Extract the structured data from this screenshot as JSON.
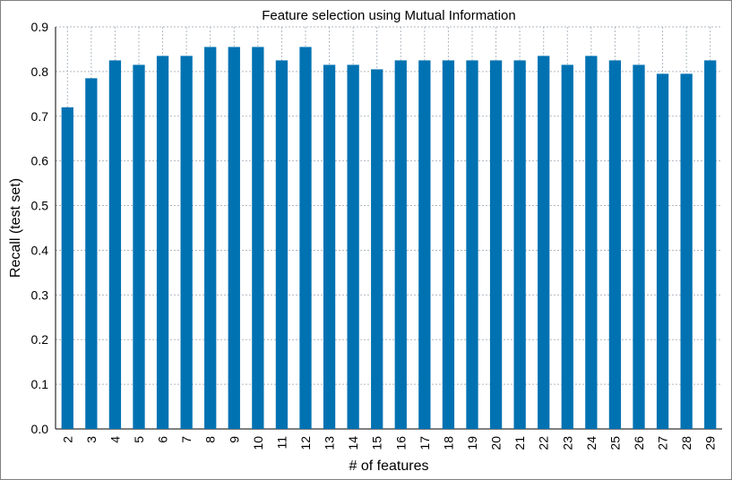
{
  "chart_data": {
    "type": "bar",
    "title": "Feature selection using Mutual Information",
    "xlabel": "# of features",
    "ylabel": "Recall (test set)",
    "categories": [
      "2",
      "3",
      "4",
      "5",
      "6",
      "7",
      "8",
      "9",
      "10",
      "11",
      "12",
      "13",
      "14",
      "15",
      "16",
      "17",
      "18",
      "19",
      "20",
      "21",
      "22",
      "23",
      "24",
      "25",
      "26",
      "27",
      "28",
      "29"
    ],
    "values": [
      0.72,
      0.785,
      0.825,
      0.815,
      0.835,
      0.835,
      0.855,
      0.855,
      0.855,
      0.825,
      0.855,
      0.815,
      0.815,
      0.805,
      0.825,
      0.825,
      0.825,
      0.825,
      0.825,
      0.825,
      0.835,
      0.815,
      0.835,
      0.825,
      0.815,
      0.795,
      0.795,
      0.825
    ],
    "ylim": [
      0,
      0.9
    ],
    "yticks": [
      "0.0",
      "0.1",
      "0.2",
      "0.3",
      "0.4",
      "0.5",
      "0.6",
      "0.7",
      "0.8",
      "0.9"
    ],
    "grid": true,
    "bar_color": "#0072b2",
    "grid_color": "#b0b8c0"
  }
}
